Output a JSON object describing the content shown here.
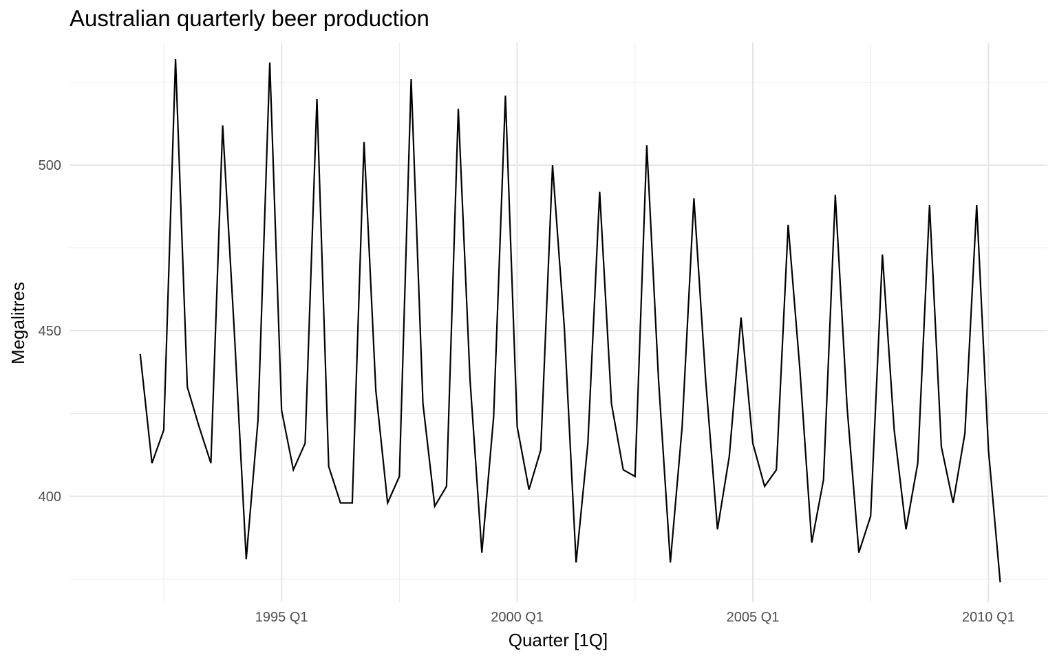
{
  "chart_data": {
    "type": "line",
    "title": "Australian quarterly beer production",
    "xlabel": "Quarter [1Q]",
    "ylabel": "Megalitres",
    "x_start": "1992 Q1",
    "x_end": "2010 Q2",
    "xlim": [
      "1990 Q3",
      "2011 Q2"
    ],
    "ylim": [
      368,
      537
    ],
    "x_ticks": [
      {
        "label": "1995 Q1",
        "quarter": "1995 Q1"
      },
      {
        "label": "2000 Q1",
        "quarter": "2000 Q1"
      },
      {
        "label": "2005 Q1",
        "quarter": "2005 Q1"
      },
      {
        "label": "2010 Q1",
        "quarter": "2010 Q1"
      }
    ],
    "x_minor_ticks": [
      "1992 Q3",
      "1997 Q3",
      "2002 Q3",
      "2007 Q3"
    ],
    "y_ticks": [
      400,
      450,
      500
    ],
    "y_minor_ticks": [
      375,
      425,
      475,
      525
    ],
    "grid": true,
    "line_color": "#000000",
    "series": [
      {
        "values": [
          443,
          410,
          420,
          532,
          433,
          421,
          410,
          512,
          449,
          381,
          423,
          531,
          426,
          408,
          416,
          520,
          409,
          398,
          398,
          507,
          432,
          398,
          406,
          526,
          428,
          397,
          403,
          517,
          435,
          383,
          424,
          521,
          421,
          402,
          414,
          500,
          451,
          380,
          416,
          492,
          428,
          408,
          406,
          506,
          435,
          380,
          421,
          490,
          435,
          390,
          412,
          454,
          416,
          403,
          408,
          482,
          438,
          386,
          405,
          491,
          427,
          383,
          394,
          473,
          420,
          390,
          410,
          488,
          415,
          398,
          419,
          488,
          414,
          374
        ]
      }
    ]
  }
}
